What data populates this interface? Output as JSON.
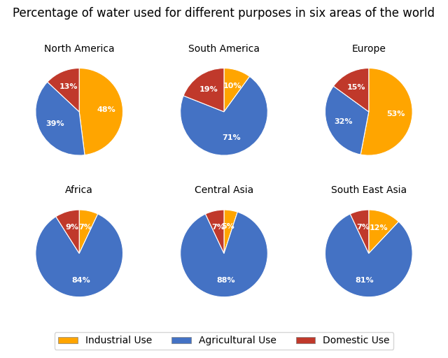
{
  "chart_data": {
    "type": "pie",
    "title": "Percentage of water used for different purposes in six areas of the world",
    "categories": [
      "Industrial Use",
      "Agricultural Use",
      "Domestic Use"
    ],
    "colors": [
      "#FFA500",
      "#4472C4",
      "#C0392B"
    ],
    "data_labels": true,
    "legend": "lower center",
    "series": [
      {
        "name": "North America",
        "values": [
          48,
          39,
          13
        ],
        "value_labels": [
          "48%",
          "39%",
          "13%"
        ]
      },
      {
        "name": "South America",
        "values": [
          10,
          71,
          19
        ],
        "value_labels": [
          "10%",
          "71%",
          "19%"
        ]
      },
      {
        "name": "Europe",
        "values": [
          53,
          32,
          15
        ],
        "value_labels": [
          "53%",
          "32%",
          "15%"
        ]
      },
      {
        "name": "Africa",
        "values": [
          7,
          84,
          9
        ],
        "value_labels": [
          "7%",
          "84%",
          "9%"
        ]
      },
      {
        "name": "Central Asia",
        "values": [
          5,
          88,
          7
        ],
        "value_labels": [
          "5%",
          "88%",
          "7%"
        ]
      },
      {
        "name": "South East Asia",
        "values": [
          12,
          81,
          7
        ],
        "value_labels": [
          "12%",
          "81%",
          "7%"
        ]
      }
    ]
  }
}
